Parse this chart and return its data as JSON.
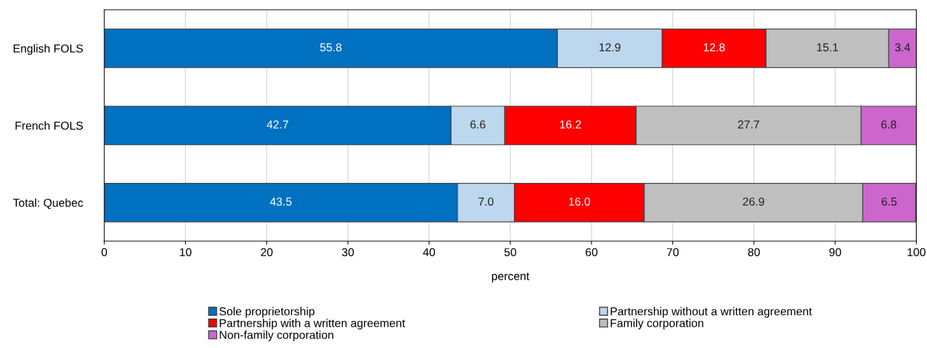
{
  "chart_data": {
    "type": "bar",
    "orientation": "horizontal",
    "stacked": true,
    "categories": [
      "English FOLS",
      "French FOLS",
      "Total: Quebec"
    ],
    "series": [
      {
        "name": "Sole proprietorship",
        "color": "#0070c0",
        "values": [
          55.8,
          42.7,
          43.5
        ],
        "value_labels": [
          "55.8",
          "42.7",
          "43.5"
        ]
      },
      {
        "name": "Partnership without a written agreement",
        "color": "#bdd7ee",
        "values": [
          12.9,
          6.6,
          7.0
        ],
        "value_labels": [
          "12.9",
          "6.6",
          "7.0"
        ]
      },
      {
        "name": "Partnership with a written agreement",
        "color": "#ff0000",
        "values": [
          12.8,
          16.2,
          16.0
        ],
        "value_labels": [
          "12.8",
          "16.2",
          "16.0"
        ]
      },
      {
        "name": "Family corporation",
        "color": "#bfbfbf",
        "values": [
          15.1,
          27.7,
          26.9
        ],
        "value_labels": [
          "15.1",
          "27.7",
          "26.9"
        ]
      },
      {
        "name": "Non-family corporation",
        "color": "#cc66cc",
        "values": [
          3.4,
          6.8,
          6.5
        ],
        "value_labels": [
          "3.4",
          "6.8",
          "6.5"
        ]
      }
    ],
    "xlabel": "percent",
    "xlim": [
      0,
      100
    ],
    "xticks": [
      0,
      10,
      20,
      30,
      40,
      50,
      60,
      70,
      80,
      90,
      100
    ],
    "grid": "x",
    "legend": "bottom"
  }
}
